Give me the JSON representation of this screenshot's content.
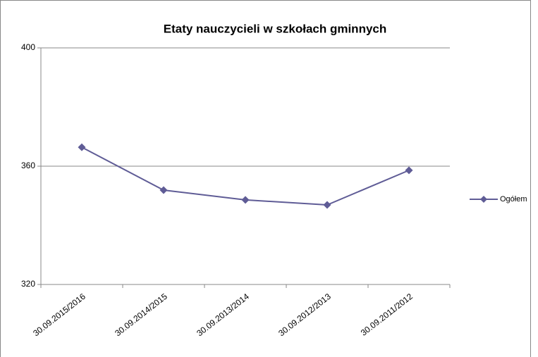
{
  "chart_data": {
    "type": "line",
    "title": "Etaty nauczycieli w szkołach gminnych",
    "categories": [
      "30.09.2015/2016",
      "30.09.2014/2015",
      "30.09.2013/2014",
      "30.09.2012/2013",
      "30.09.2011/2012"
    ],
    "series": [
      {
        "name": "Ogółem",
        "color": "#5f5c96",
        "values": [
          366.4,
          351.9,
          348.6,
          346.9,
          358.6
        ]
      }
    ],
    "ylim": [
      320,
      400
    ],
    "yticks": [
      320,
      360,
      400
    ],
    "grid": true,
    "legend": "right"
  }
}
